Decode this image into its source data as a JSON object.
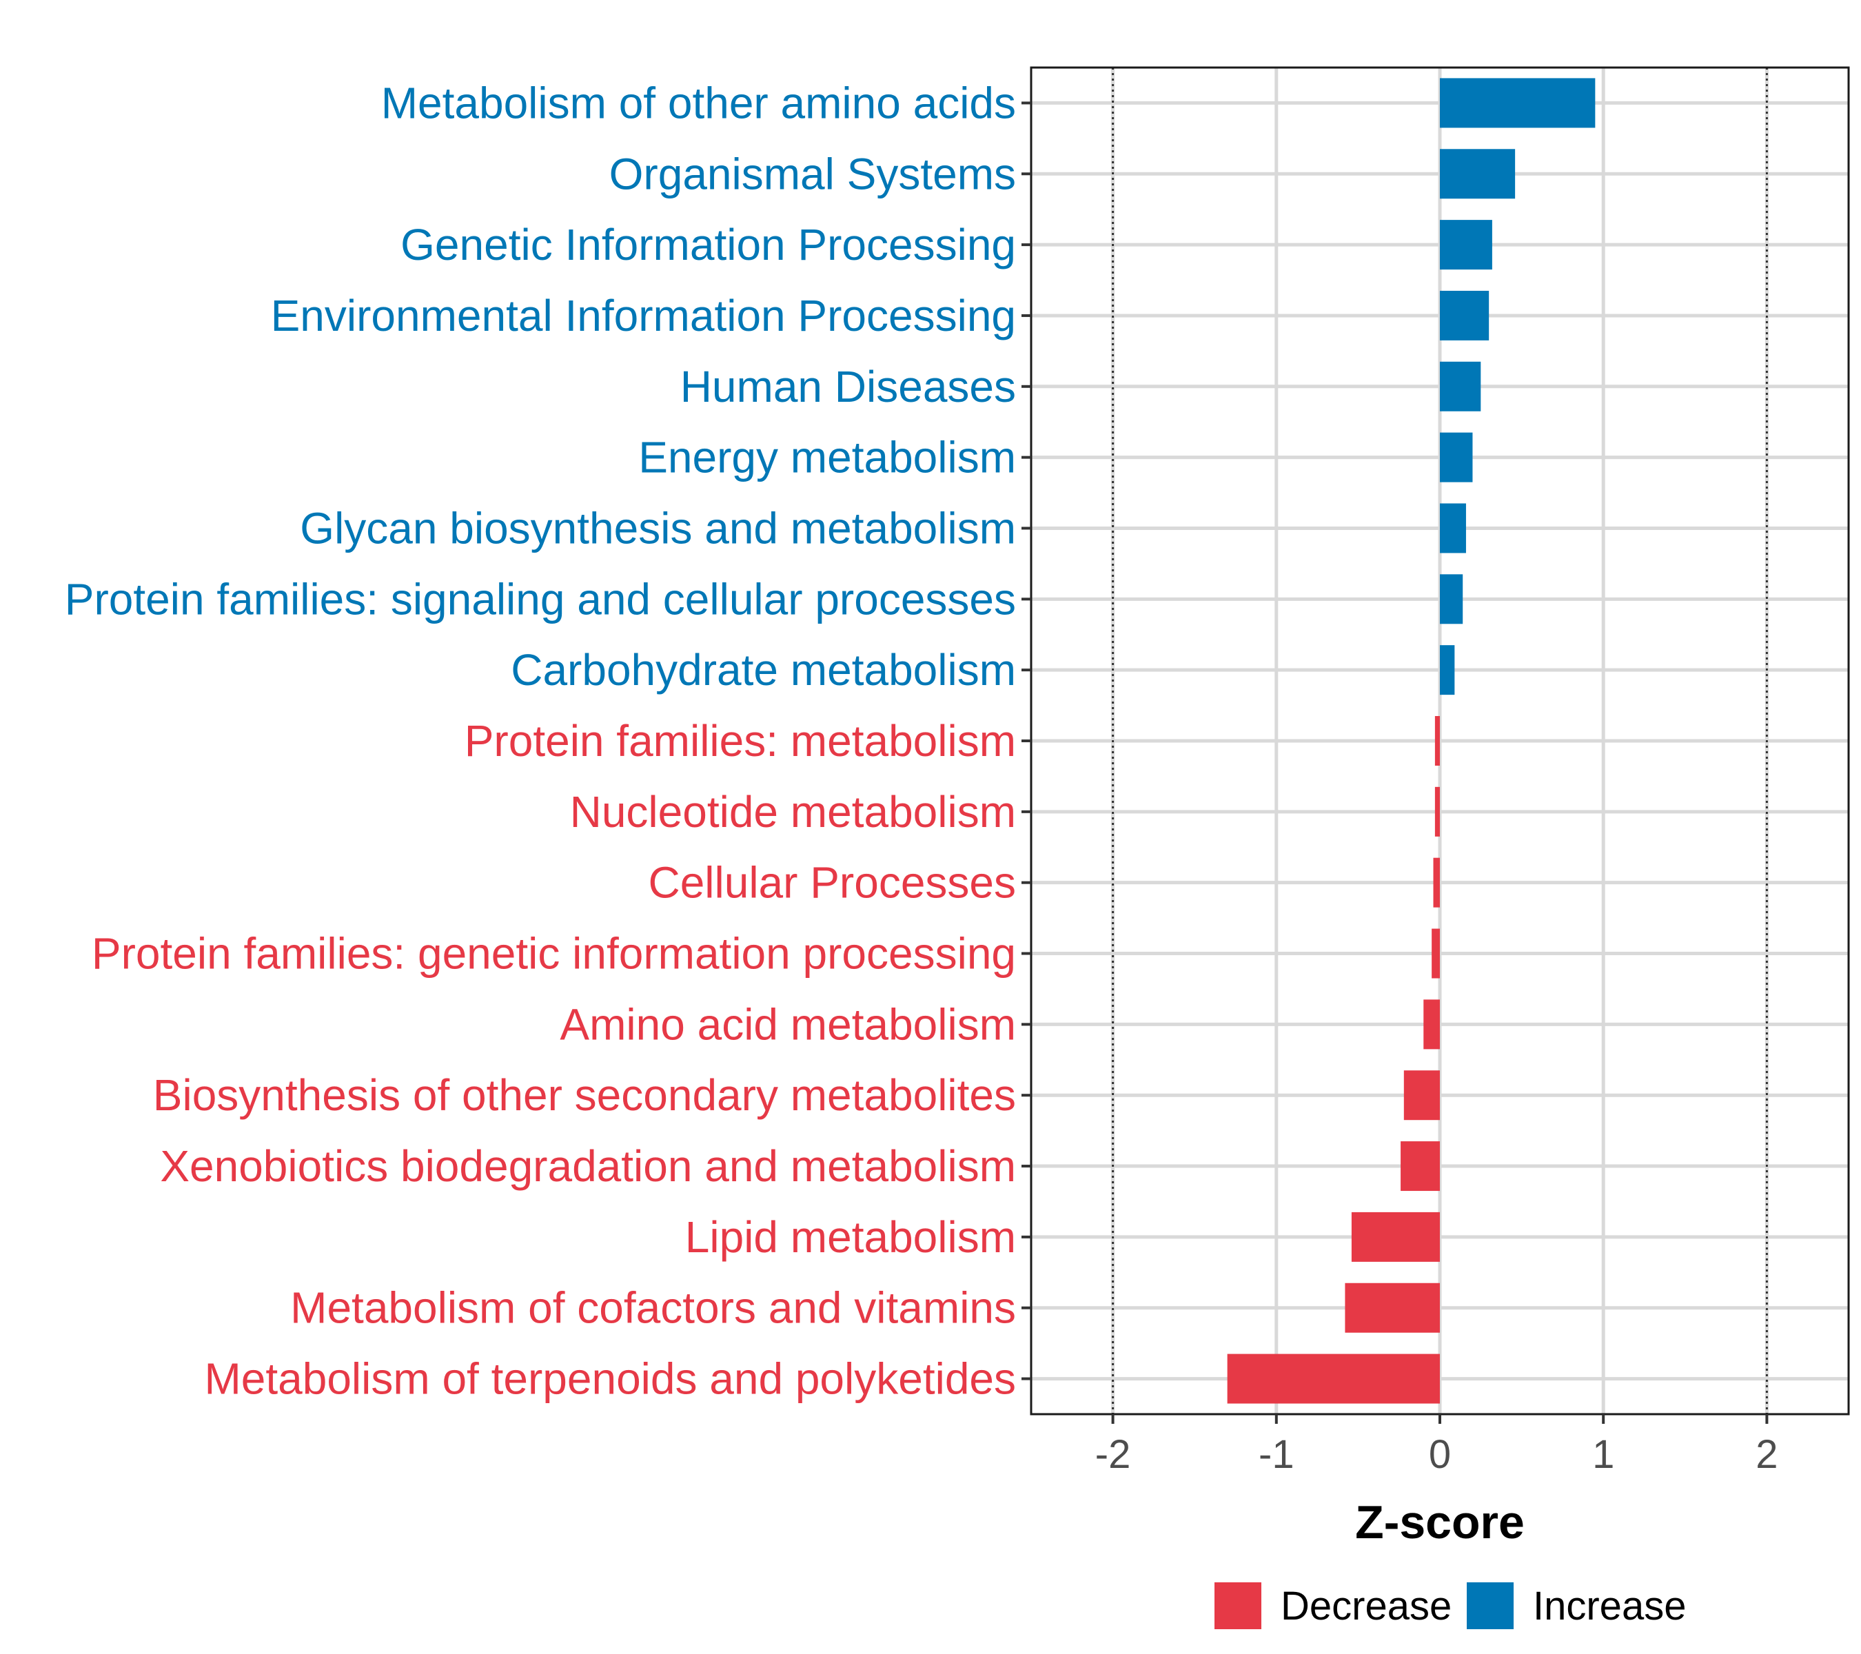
{
  "chart_data": {
    "type": "bar",
    "orientation": "horizontal",
    "xlabel": "Z-score",
    "ylabel": "",
    "xlim": [
      -2.5,
      2.5
    ],
    "xticks": [
      -2,
      -1,
      0,
      1,
      2
    ],
    "xtick_labels": [
      "-2",
      "-1",
      "0",
      "1",
      "2"
    ],
    "reference_lines": [
      -2,
      2
    ],
    "grid": true,
    "legend_position": "bottom",
    "colors": {
      "Decrease": "#E63946",
      "Increase": "#0077B6"
    },
    "legend": [
      {
        "label": "Decrease",
        "color": "#E63946"
      },
      {
        "label": "Increase",
        "color": "#0077B6"
      }
    ],
    "categories": [
      "Metabolism of other amino acids",
      "Organismal Systems",
      "Genetic Information Processing",
      "Environmental Information Processing",
      "Human Diseases",
      "Energy metabolism",
      "Glycan biosynthesis and metabolism",
      "Protein families: signaling and cellular processes",
      "Carbohydrate metabolism",
      "Protein families: metabolism",
      "Nucleotide metabolism",
      "Cellular Processes",
      "Protein families: genetic information processing",
      "Amino acid metabolism",
      "Biosynthesis of other secondary metabolites",
      "Xenobiotics biodegradation and metabolism",
      "Lipid metabolism",
      "Metabolism of cofactors and vitamins",
      "Metabolism of terpenoids and polyketides"
    ],
    "values": [
      0.95,
      0.46,
      0.32,
      0.3,
      0.25,
      0.2,
      0.16,
      0.14,
      0.09,
      -0.03,
      -0.03,
      -0.04,
      -0.05,
      -0.1,
      -0.22,
      -0.24,
      -0.54,
      -0.58,
      -1.3
    ],
    "groups": [
      "Increase",
      "Increase",
      "Increase",
      "Increase",
      "Increase",
      "Increase",
      "Increase",
      "Increase",
      "Increase",
      "Decrease",
      "Decrease",
      "Decrease",
      "Decrease",
      "Decrease",
      "Decrease",
      "Decrease",
      "Decrease",
      "Decrease",
      "Decrease"
    ]
  }
}
